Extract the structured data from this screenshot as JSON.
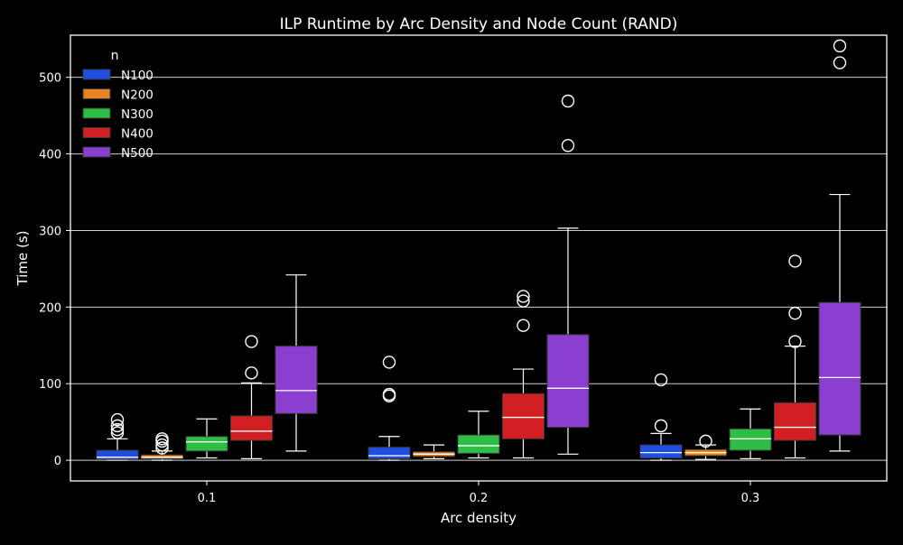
{
  "chart_data": {
    "type": "boxplot",
    "title": "ILP Runtime by Arc Density and Node Count (RAND)",
    "xlabel": "Arc density",
    "ylabel": "Time (s)",
    "ylim": [
      -27,
      555
    ],
    "yticks": [
      0,
      100,
      200,
      300,
      400,
      500
    ],
    "grid": "y",
    "legend": {
      "title": "n",
      "placement": "top-left"
    },
    "categories": [
      "0.1",
      "0.2",
      "0.3"
    ],
    "series": [
      {
        "name": "N100",
        "color": "#1f4ee0",
        "boxes": [
          {
            "min": 0,
            "q1": 1,
            "median": 4,
            "q3": 13,
            "max": 28,
            "outliers": [
              36,
              40,
              45,
              53
            ]
          },
          {
            "min": 0,
            "q1": 2,
            "median": 6,
            "q3": 17,
            "max": 31,
            "outliers": [
              84,
              86,
              128
            ]
          },
          {
            "min": 0,
            "q1": 3,
            "median": 10,
            "q3": 20,
            "max": 35,
            "outliers": [
              45,
              105
            ]
          }
        ]
      },
      {
        "name": "N200",
        "color": "#e8841f",
        "boxes": [
          {
            "min": 0,
            "q1": 2,
            "median": 4,
            "q3": 7,
            "max": 12,
            "outliers": [
              16,
              20,
              25,
              28
            ]
          },
          {
            "min": 2,
            "q1": 5,
            "median": 8,
            "q3": 11,
            "max": 20,
            "outliers": []
          },
          {
            "min": 1,
            "q1": 6,
            "median": 10,
            "q3": 14,
            "max": 20,
            "outliers": [
              25
            ]
          }
        ]
      },
      {
        "name": "N300",
        "color": "#2ebd45",
        "boxes": [
          {
            "min": 3,
            "q1": 12,
            "median": 24,
            "q3": 31,
            "max": 54,
            "outliers": []
          },
          {
            "min": 3,
            "q1": 9,
            "median": 19,
            "q3": 33,
            "max": 64,
            "outliers": []
          },
          {
            "min": 2,
            "q1": 13,
            "median": 28,
            "q3": 41,
            "max": 67,
            "outliers": []
          }
        ]
      },
      {
        "name": "N400",
        "color": "#d21f24",
        "boxes": [
          {
            "min": 2,
            "q1": 26,
            "median": 38,
            "q3": 58,
            "max": 101,
            "outliers": [
              114,
              155
            ]
          },
          {
            "min": 3,
            "q1": 28,
            "median": 56,
            "q3": 87,
            "max": 119,
            "outliers": [
              176,
              208,
              214
            ]
          },
          {
            "min": 3,
            "q1": 26,
            "median": 43,
            "q3": 75,
            "max": 149,
            "outliers": [
              155,
              192,
              260
            ]
          }
        ]
      },
      {
        "name": "N500",
        "color": "#8a3fd1",
        "boxes": [
          {
            "min": 12,
            "q1": 61,
            "median": 91,
            "q3": 149,
            "max": 242,
            "outliers": []
          },
          {
            "min": 8,
            "q1": 43,
            "median": 94,
            "q3": 164,
            "max": 303,
            "outliers": [
              411,
              469
            ]
          },
          {
            "min": 12,
            "q1": 33,
            "median": 108,
            "q3": 206,
            "max": 347,
            "outliers": [
              519,
              541
            ]
          }
        ]
      }
    ]
  }
}
